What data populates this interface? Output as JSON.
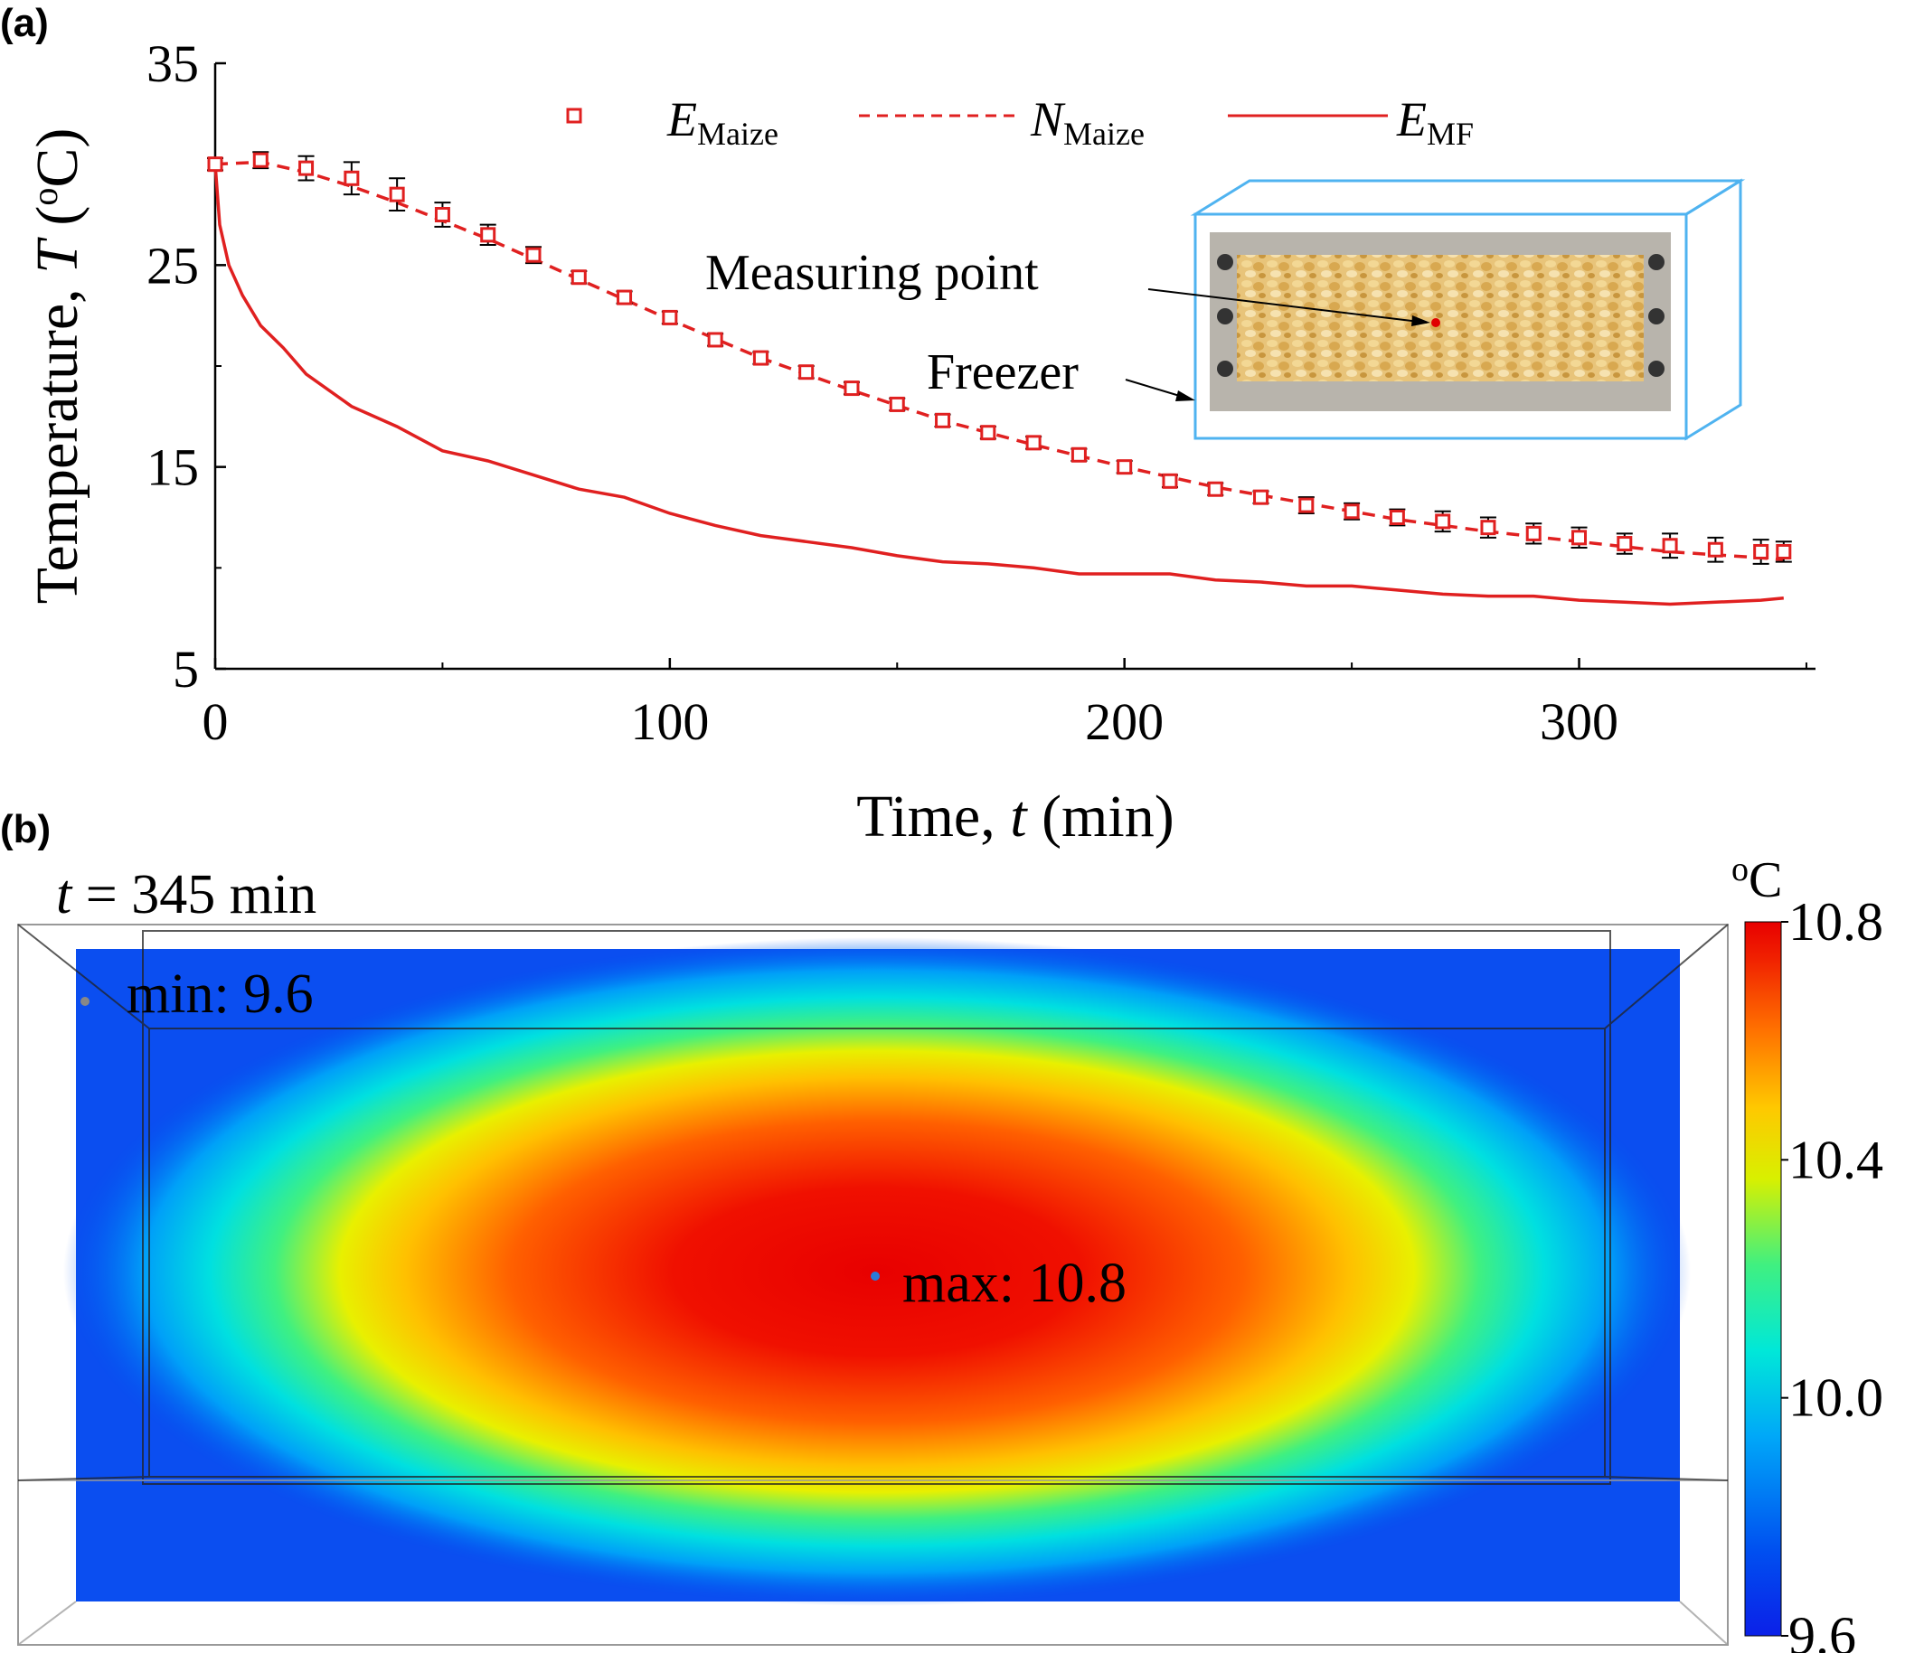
{
  "panel_a": {
    "tag": "(a)",
    "inset": {
      "measuring_point_label": "Measuring point",
      "freezer_label": "Freezer"
    }
  },
  "panel_b": {
    "tag": "(b)",
    "time_label": "t = 345 min",
    "min_label": "min: 9.6",
    "max_label": "max: 10.8",
    "colorbar": {
      "unit": "oC",
      "ticks": [
        "10.8",
        "10.4",
        "10.0",
        "9.6"
      ],
      "colors": [
        "#0b30e8",
        "#0050f0",
        "#00a8f8",
        "#00e8d8",
        "#40f080",
        "#d8f000",
        "#ffc800",
        "#ff7000",
        "#f02000",
        "#e80000"
      ]
    }
  },
  "chart_data": [
    {
      "type": "line",
      "xlabel": "Time, t (min)",
      "ylabel": "Temperature, T (oC)",
      "xlim": [
        0,
        352
      ],
      "ylim": [
        5,
        35
      ],
      "x_ticks": [
        0,
        100,
        200,
        300
      ],
      "y_ticks": [
        5,
        15,
        25,
        35
      ],
      "legend": [
        "E_Maize",
        "N_Maize",
        "E_MF"
      ],
      "legend_position": "top",
      "series": [
        {
          "name": "E_Maize",
          "style": "scatter-squares-with-error-bars",
          "color": "#e02020",
          "x": [
            0,
            10,
            20,
            30,
            40,
            50,
            60,
            70,
            80,
            90,
            100,
            110,
            120,
            130,
            140,
            150,
            160,
            170,
            180,
            190,
            200,
            210,
            220,
            230,
            240,
            250,
            260,
            270,
            280,
            290,
            300,
            310,
            320,
            330,
            340,
            345
          ],
          "y": [
            30.0,
            30.2,
            29.8,
            29.3,
            28.5,
            27.5,
            26.5,
            25.5,
            24.4,
            23.4,
            22.4,
            21.3,
            20.4,
            19.7,
            18.9,
            18.1,
            17.3,
            16.7,
            16.2,
            15.6,
            15.0,
            14.3,
            13.9,
            13.5,
            13.1,
            12.8,
            12.5,
            12.3,
            12.0,
            11.7,
            11.5,
            11.2,
            11.1,
            10.9,
            10.8,
            10.8
          ],
          "error": [
            0.3,
            0.4,
            0.6,
            0.8,
            0.8,
            0.6,
            0.5,
            0.4,
            0.3,
            0.3,
            0.3,
            0.3,
            0.3,
            0.3,
            0.3,
            0.3,
            0.3,
            0.3,
            0.3,
            0.3,
            0.3,
            0.3,
            0.3,
            0.3,
            0.4,
            0.4,
            0.4,
            0.5,
            0.5,
            0.5,
            0.5,
            0.5,
            0.6,
            0.6,
            0.6,
            0.5
          ]
        },
        {
          "name": "N_Maize",
          "style": "dashed-line",
          "color": "#e02020",
          "x": [
            0,
            10,
            20,
            30,
            40,
            50,
            60,
            70,
            80,
            90,
            100,
            120,
            140,
            160,
            180,
            200,
            220,
            240,
            260,
            280,
            300,
            320,
            340,
            345
          ],
          "y": [
            30.0,
            30.1,
            29.6,
            28.9,
            28.1,
            27.2,
            26.3,
            25.3,
            24.3,
            23.3,
            22.3,
            20.4,
            18.8,
            17.3,
            16.1,
            15.0,
            14.0,
            13.2,
            12.4,
            11.8,
            11.3,
            10.8,
            10.5,
            10.4
          ]
        },
        {
          "name": "E_MF",
          "style": "solid-line",
          "color": "#e02020",
          "x": [
            0,
            1,
            3,
            6,
            10,
            15,
            20,
            30,
            40,
            50,
            60,
            70,
            80,
            90,
            100,
            110,
            120,
            130,
            140,
            150,
            160,
            170,
            180,
            190,
            200,
            210,
            220,
            230,
            240,
            250,
            260,
            270,
            280,
            290,
            300,
            310,
            320,
            330,
            340,
            345
          ],
          "y": [
            30.0,
            27.0,
            25.0,
            23.5,
            22.0,
            20.9,
            19.6,
            18.0,
            17.0,
            15.8,
            15.3,
            14.6,
            13.9,
            13.5,
            12.7,
            12.1,
            11.6,
            11.3,
            11.0,
            10.6,
            10.3,
            10.2,
            10.0,
            9.7,
            9.7,
            9.7,
            9.4,
            9.3,
            9.1,
            9.1,
            8.9,
            8.7,
            8.6,
            8.6,
            8.4,
            8.3,
            8.2,
            8.3,
            8.4,
            8.5
          ]
        }
      ]
    }
  ]
}
